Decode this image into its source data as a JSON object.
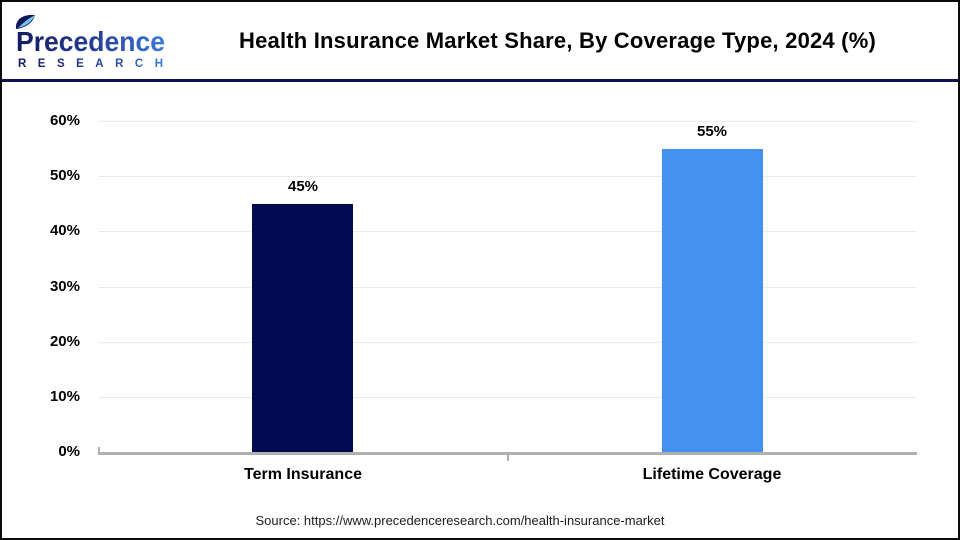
{
  "header": {
    "logo": {
      "brand": "Precedence",
      "subtext": "RESEARCH",
      "brand_gradient_start": "#141a60",
      "brand_gradient_end": "#3c7cdb",
      "leaf_accent": "#79c7ef"
    },
    "title": "Health Insurance Market Share, By Coverage Type, 2024 (%)"
  },
  "chart_data": {
    "type": "bar",
    "title": "Health Insurance Market Share, By Coverage Type, 2024 (%)",
    "categories": [
      "Term Insurance",
      "Lifetime Coverage"
    ],
    "values": [
      45,
      55
    ],
    "value_labels": [
      "45%",
      "55%"
    ],
    "bar_colors": [
      "#020b52",
      "#4591ef"
    ],
    "xlabel": "",
    "ylabel": "",
    "ylim": [
      0,
      60
    ],
    "ytick_values": [
      0,
      10,
      20,
      30,
      40,
      50,
      60
    ],
    "ytick_labels": [
      "0%",
      "10%",
      "20%",
      "30%",
      "40%",
      "50%",
      "60%"
    ],
    "grid": true,
    "legend": false
  },
  "footer": {
    "source": "Source: https://www.precedenceresearch.com/health-insurance-market"
  },
  "colors": {
    "axis": "#b0b0b0",
    "gridline": "#e9e9e9",
    "header_rule": "#0d1250",
    "page_border": "#0a0a0a"
  }
}
